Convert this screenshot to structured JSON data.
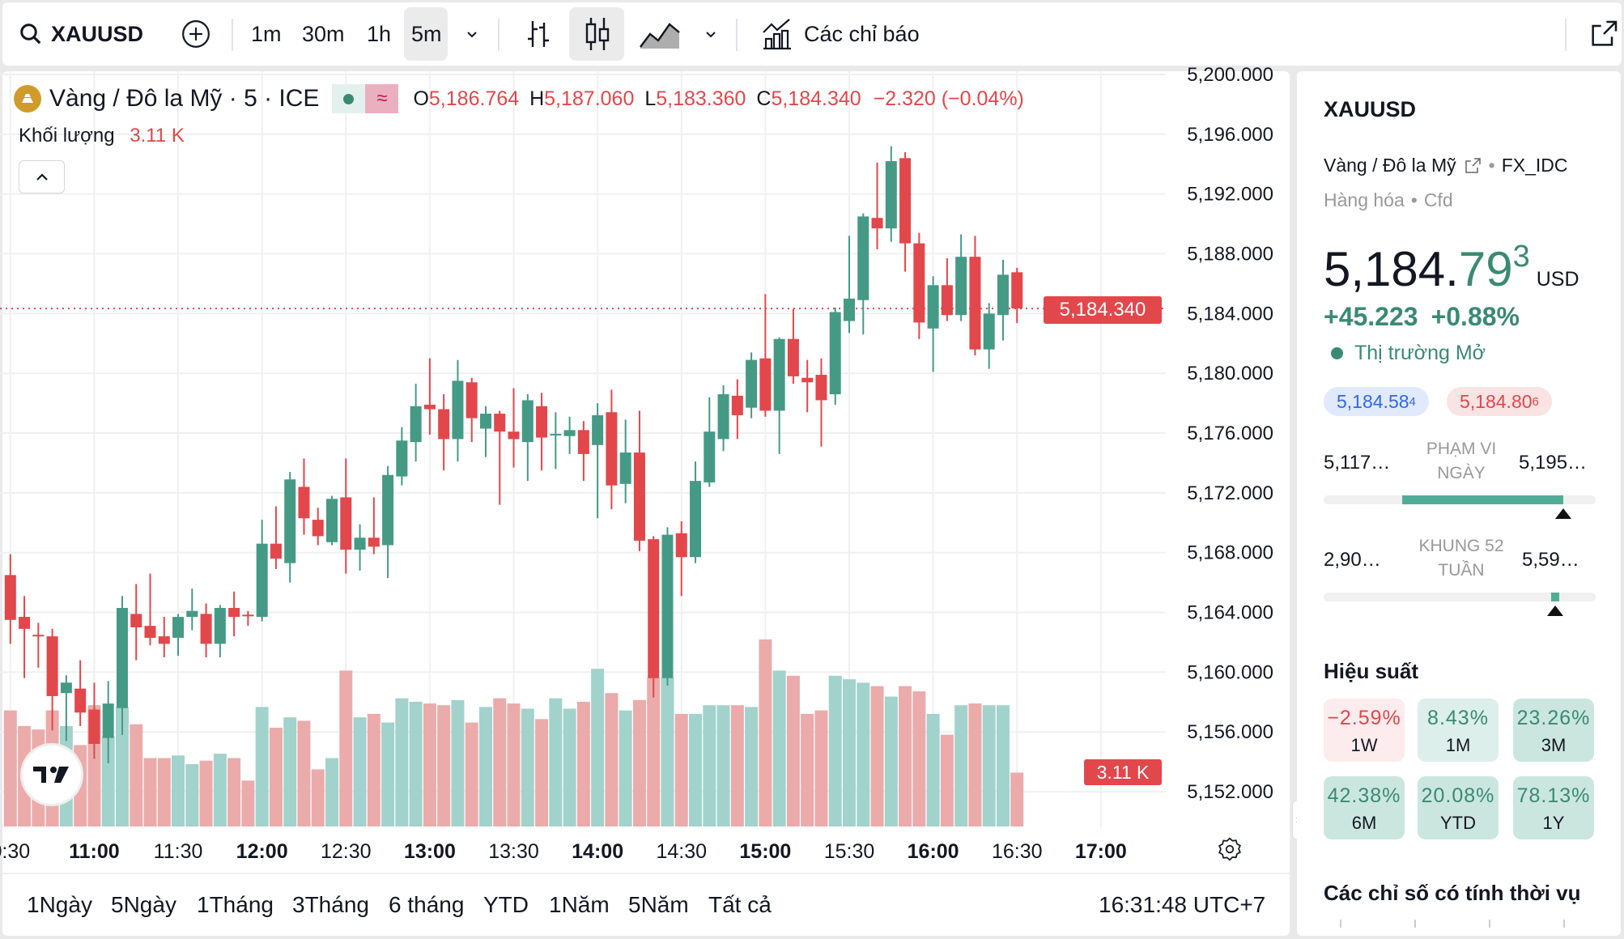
{
  "toolbar": {
    "symbol": "XAUUSD",
    "intervals": [
      "1m",
      "30m",
      "1h",
      "5m"
    ],
    "active_interval": "5m",
    "indicators_label": "Các chỉ báo"
  },
  "legend": {
    "title": "Vàng / Đô la Mỹ · 5 · ICE",
    "o_label": "O",
    "o": "5,186.764",
    "h_label": "H",
    "h": "5,187.060",
    "l_label": "L",
    "l": "5,183.360",
    "c_label": "C",
    "c": "5,184.340",
    "change": "−2.320 (−0.04%)",
    "volume_label": "Khối lượng",
    "volume": "3.11 K"
  },
  "price_axis": {
    "last_price": "5,184.340",
    "last_volume": "3.11 K"
  },
  "bottom": {
    "ranges": [
      "1Ngày",
      "5Ngày",
      "1Tháng",
      "3Tháng",
      "6 tháng",
      "YTD",
      "1Năm",
      "5Năm",
      "Tất cả"
    ],
    "clock": "16:31:48 UTC+7"
  },
  "panel": {
    "symbol": "XAUUSD",
    "name": "Vàng / Đô la Mỹ",
    "exchange": "FX_IDC",
    "category": "Hàng hóa",
    "type": "Cfd",
    "price_main": "5,184.",
    "price_green": "79",
    "price_sup": "3",
    "currency": "USD",
    "change": "+45.223",
    "change_pct": "+0.88%",
    "market_status": "Thị trường Mở",
    "bid": "5,184.58",
    "bid_sup": "4",
    "ask": "5,184.80",
    "ask_sup": "6",
    "day_low": "5,117…",
    "day_high": "5,195…",
    "day_label": "PHẠM VI NGÀY",
    "day_range_fill": [
      0.29,
      0.88
    ],
    "day_marker": 0.88,
    "wk_low": "2,90…",
    "wk_high": "5,59…",
    "wk_label": "KHUNG 52 TUẦN",
    "wk_marker": 0.85,
    "perf_title": "Hiệu suất",
    "perf": [
      {
        "v": "−2.59%",
        "p": "1W",
        "neg": true
      },
      {
        "v": "8.43%",
        "p": "1M"
      },
      {
        "v": "23.26%",
        "p": "3M"
      },
      {
        "v": "42.38%",
        "p": "6M"
      },
      {
        "v": "20.08%",
        "p": "YTD"
      },
      {
        "v": "78.13%",
        "p": "1Y"
      }
    ],
    "seasonal_title": "Các chỉ số có tính thời vụ"
  },
  "colors": {
    "up": "#459a86",
    "down": "#e2474b",
    "up_vol": "#a2d2cc",
    "down_vol": "#ebabab"
  },
  "chart_data": {
    "type": "candlestick",
    "title": "Vàng / Đô la Mỹ · 5 · ICE",
    "interval": "5m",
    "ylim": [
      5150,
      5200
    ],
    "y_ticks": [
      "5,152.000",
      "5,156.000",
      "5,160.000",
      "5,164.000",
      "5,168.000",
      "5,172.000",
      "5,176.000",
      "5,180.000",
      "5,184.000",
      "5,188.000",
      "5,192.000",
      "5,196.000",
      "5,200.000"
    ],
    "x_ticks": [
      {
        "t": "10:30",
        "label": "0:30",
        "bold": false
      },
      {
        "t": "11:00",
        "label": "11:00",
        "bold": true
      },
      {
        "t": "11:30",
        "label": "11:30",
        "bold": false
      },
      {
        "t": "12:00",
        "label": "12:00",
        "bold": true
      },
      {
        "t": "12:30",
        "label": "12:30",
        "bold": false
      },
      {
        "t": "13:00",
        "label": "13:00",
        "bold": true
      },
      {
        "t": "13:30",
        "label": "13:30",
        "bold": false
      },
      {
        "t": "14:00",
        "label": "14:00",
        "bold": true
      },
      {
        "t": "14:30",
        "label": "14:30",
        "bold": false
      },
      {
        "t": "15:00",
        "label": "15:00",
        "bold": true
      },
      {
        "t": "15:30",
        "label": "15:30",
        "bold": false
      },
      {
        "t": "16:00",
        "label": "16:00",
        "bold": true
      },
      {
        "t": "16:30",
        "label": "16:30",
        "bold": false
      },
      {
        "t": "17:00",
        "label": "17:00",
        "bold": true
      }
    ],
    "start_time": "10:30",
    "ohlc": [
      [
        5166.5,
        5167.9,
        5161.9,
        5163.5
      ],
      [
        5163.7,
        5165.1,
        5159.6,
        5162.9
      ],
      [
        5162.5,
        5163.3,
        5160.3,
        5162.4
      ],
      [
        5162.4,
        5162.9,
        5156.1,
        5158.4
      ],
      [
        5158.6,
        5159.8,
        5155.4,
        5159.3
      ],
      [
        5158.9,
        5160.8,
        5156.4,
        5157.3
      ],
      [
        5157.5,
        5159.3,
        5154.2,
        5155.2
      ],
      [
        5155.6,
        5159.4,
        5153.9,
        5157.9
      ],
      [
        5157.6,
        5165.1,
        5155.8,
        5164.3
      ],
      [
        5163.9,
        5165.9,
        5160.8,
        5163.0
      ],
      [
        5163.1,
        5166.6,
        5161.8,
        5162.3
      ],
      [
        5162.4,
        5163.7,
        5161.0,
        5161.9
      ],
      [
        5162.3,
        5163.9,
        5161.1,
        5163.7
      ],
      [
        5163.7,
        5165.6,
        5162.8,
        5164.1
      ],
      [
        5163.9,
        5164.6,
        5161.0,
        5161.9
      ],
      [
        5161.9,
        5164.5,
        5161.0,
        5164.3
      ],
      [
        5164.3,
        5165.4,
        5162.4,
        5163.7
      ],
      [
        5163.85,
        5164.1,
        5163.1,
        5163.75
      ],
      [
        5163.7,
        5170.2,
        5163.4,
        5168.6
      ],
      [
        5168.6,
        5171.1,
        5166.9,
        5167.6
      ],
      [
        5167.3,
        5173.4,
        5166.0,
        5172.9
      ],
      [
        5172.4,
        5174.3,
        5169.2,
        5170.3
      ],
      [
        5170.2,
        5171.0,
        5168.5,
        5169.1
      ],
      [
        5168.7,
        5171.8,
        5168.5,
        5171.6
      ],
      [
        5171.7,
        5174.3,
        5166.6,
        5168.2
      ],
      [
        5168.2,
        5169.9,
        5166.8,
        5169.0
      ],
      [
        5169.0,
        5171.7,
        5167.9,
        5168.4
      ],
      [
        5168.5,
        5173.8,
        5166.3,
        5173.2
      ],
      [
        5173.1,
        5176.4,
        5172.5,
        5175.5
      ],
      [
        5175.4,
        5179.3,
        5174.1,
        5177.8
      ],
      [
        5177.9,
        5181.0,
        5175.9,
        5177.6
      ],
      [
        5177.6,
        5178.6,
        5173.5,
        5175.6
      ],
      [
        5175.6,
        5180.9,
        5174.1,
        5179.5
      ],
      [
        5179.4,
        5179.7,
        5175.4,
        5177.0
      ],
      [
        5176.3,
        5177.8,
        5174.4,
        5177.3
      ],
      [
        5177.3,
        5177.5,
        5171.2,
        5176.1
      ],
      [
        5176.1,
        5179.0,
        5173.7,
        5175.6
      ],
      [
        5175.4,
        5178.6,
        5172.8,
        5178.2
      ],
      [
        5177.8,
        5178.7,
        5173.5,
        5175.7
      ],
      [
        5175.85,
        5177.4,
        5173.6,
        5175.95
      ],
      [
        5175.8,
        5177.1,
        5174.6,
        5176.2
      ],
      [
        5176.2,
        5176.8,
        5172.8,
        5174.6
      ],
      [
        5175.2,
        5178.0,
        5170.3,
        5177.2
      ],
      [
        5177.4,
        5178.9,
        5170.9,
        5172.5
      ],
      [
        5172.6,
        5176.9,
        5171.3,
        5174.7
      ],
      [
        5174.7,
        5177.5,
        5168.1,
        5168.8
      ],
      [
        5168.9,
        5169.1,
        5158.3,
        5159.6
      ],
      [
        5159.6,
        5169.7,
        5159.1,
        5169.2
      ],
      [
        5169.3,
        5170.1,
        5165.1,
        5167.7
      ],
      [
        5167.7,
        5174.1,
        5167.3,
        5172.8
      ],
      [
        5172.7,
        5178.4,
        5172.4,
        5176.1
      ],
      [
        5175.6,
        5179.2,
        5174.8,
        5178.6
      ],
      [
        5178.5,
        5179.6,
        5175.6,
        5177.2
      ],
      [
        5177.7,
        5181.4,
        5177.0,
        5180.9
      ],
      [
        5181.0,
        5185.3,
        5177.1,
        5177.5
      ],
      [
        5177.5,
        5182.4,
        5174.6,
        5182.3
      ],
      [
        5182.3,
        5184.3,
        5179.3,
        5179.8
      ],
      [
        5179.7,
        5180.9,
        5177.4,
        5179.4
      ],
      [
        5179.9,
        5181.0,
        5175.1,
        5178.2
      ],
      [
        5178.6,
        5184.4,
        5177.9,
        5184.1
      ],
      [
        5183.5,
        5189.2,
        5182.7,
        5185.0
      ],
      [
        5184.9,
        5190.7,
        5182.6,
        5190.5
      ],
      [
        5190.4,
        5194.1,
        5188.3,
        5189.7
      ],
      [
        5189.7,
        5195.2,
        5188.8,
        5194.2
      ],
      [
        5194.4,
        5194.8,
        5186.8,
        5188.7
      ],
      [
        5188.7,
        5189.4,
        5182.3,
        5183.4
      ],
      [
        5183.0,
        5186.5,
        5180.1,
        5185.9
      ],
      [
        5185.9,
        5187.7,
        5183.5,
        5183.9
      ],
      [
        5183.9,
        5189.3,
        5183.5,
        5187.8
      ],
      [
        5187.8,
        5189.2,
        5181.2,
        5181.6
      ],
      [
        5181.6,
        5184.7,
        5180.3,
        5184.0
      ],
      [
        5183.9,
        5187.6,
        5182.2,
        5186.6
      ],
      [
        5186.764,
        5187.06,
        5183.36,
        5184.34
      ]
    ],
    "volume_k": [
      6.7,
      5.8,
      5.6,
      6.7,
      5.8,
      4.7,
      7.0,
      5.2,
      6.9,
      5.9,
      3.95,
      3.95,
      4.1,
      3.6,
      3.8,
      4.2,
      3.95,
      2.65,
      6.9,
      5.7,
      6.3,
      6.1,
      3.3,
      3.95,
      9.0,
      6.3,
      6.5,
      6.0,
      7.4,
      7.2,
      7.1,
      7.0,
      7.3,
      6.0,
      6.9,
      7.4,
      7.1,
      6.8,
      6.2,
      7.4,
      6.8,
      7.2,
      9.1,
      7.7,
      6.7,
      7.3,
      8.6,
      8.6,
      6.5,
      6.5,
      7.0,
      7.0,
      7.0,
      6.9,
      10.8,
      9.0,
      8.7,
      6.5,
      6.7,
      8.7,
      8.5,
      8.3,
      8.1,
      7.5,
      8.1,
      7.8,
      6.5,
      5.3,
      7.0,
      7.1,
      7.0,
      7.0,
      3.11
    ],
    "last_price": 5184.34
  }
}
